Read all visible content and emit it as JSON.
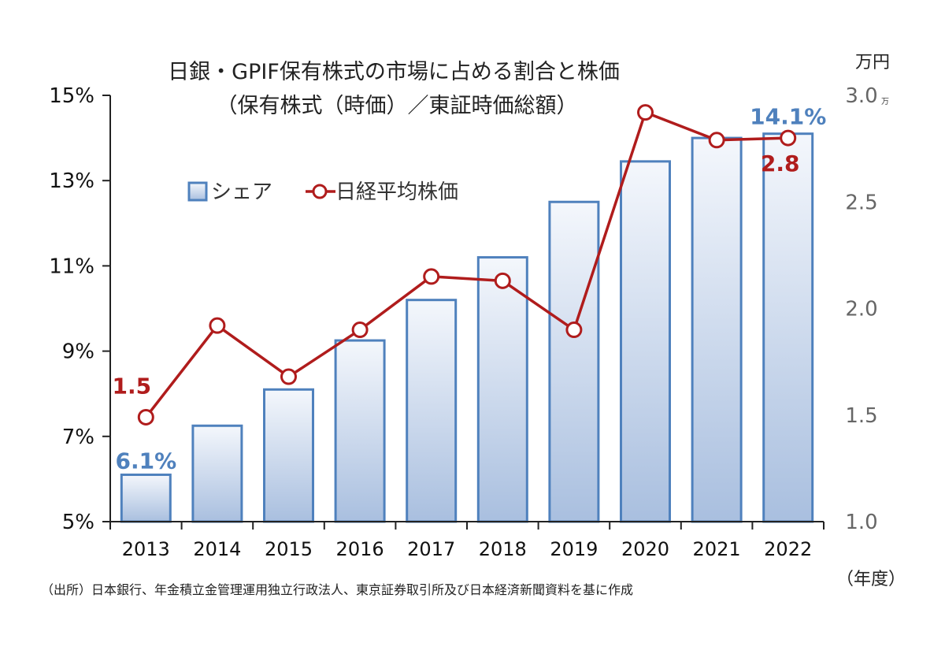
{
  "chart_data": {
    "type": "bar+line",
    "title_line1": "日銀・GPIF保有株式の市場に占める割合と株価",
    "title_line2": "（保有株式（時価）／東証時価総額）",
    "categories": [
      "2013",
      "2014",
      "2015",
      "2016",
      "2017",
      "2018",
      "2019",
      "2020",
      "2021",
      "2022"
    ],
    "x_unit": "（年度）",
    "left_axis": {
      "ylim": [
        5,
        15
      ],
      "ticks": [
        "5%",
        "7%",
        "9%",
        "11%",
        "13%",
        "15%"
      ]
    },
    "right_axis": {
      "ylim": [
        1.0,
        3.0
      ],
      "ticks": [
        "1.0",
        "1.5",
        "2.0",
        "2.5",
        "3.0"
      ],
      "unit": "万円",
      "unit_small": "万"
    },
    "series": [
      {
        "name": "シェア",
        "type": "bar",
        "axis": "left",
        "values": [
          6.1,
          7.25,
          8.1,
          9.25,
          10.2,
          11.2,
          12.5,
          13.45,
          14.0,
          14.1
        ],
        "first_label": "6.1%",
        "last_label": "14.1%",
        "color": "#4f81bd"
      },
      {
        "name": "日経平均株価",
        "type": "line",
        "axis": "right",
        "values": [
          1.49,
          1.92,
          1.68,
          1.9,
          2.15,
          2.13,
          1.9,
          2.92,
          2.79,
          2.8
        ],
        "first_label": "1.5",
        "last_label": "2.8",
        "color": "#b01c1c"
      }
    ],
    "grid": false,
    "legend": "top-left"
  },
  "source_note": "（出所）日本銀行、年金積立金管理運用独立行政法人、東京証券取引所及び日本経済新聞資料を基に作成"
}
